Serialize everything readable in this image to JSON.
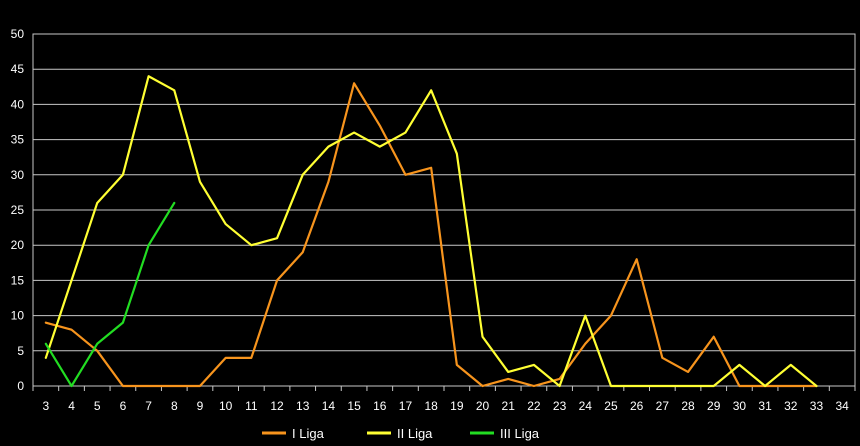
{
  "chart_data": {
    "type": "line",
    "x": [
      3,
      4,
      5,
      6,
      7,
      8,
      9,
      10,
      11,
      12,
      13,
      14,
      15,
      16,
      17,
      18,
      19,
      20,
      21,
      22,
      23,
      24,
      25,
      26,
      27,
      28,
      29,
      30,
      31,
      32,
      33,
      34
    ],
    "ylim": [
      0,
      50
    ],
    "yticks": [
      0,
      5,
      10,
      15,
      20,
      25,
      30,
      35,
      40,
      45,
      50
    ],
    "grid": true,
    "legend_position": "bottom",
    "background": "#000000",
    "series": [
      {
        "name": "I Liga",
        "color": "#f7941d",
        "values": [
          9,
          8,
          5,
          0,
          0,
          0,
          0,
          4,
          4,
          15,
          19,
          29,
          43,
          37,
          30,
          31,
          3,
          0,
          1,
          0,
          1,
          6,
          10,
          18,
          4,
          2,
          7,
          0,
          0,
          0,
          0,
          null
        ]
      },
      {
        "name": "II Liga",
        "color": "#ffff33",
        "values": [
          4,
          15,
          26,
          30,
          44,
          42,
          29,
          23,
          20,
          21,
          30,
          34,
          36,
          34,
          36,
          42,
          33,
          7,
          2,
          3,
          0,
          10,
          0,
          0,
          0,
          0,
          0,
          3,
          0,
          3,
          0,
          null
        ]
      },
      {
        "name": "III Liga",
        "color": "#22dd22",
        "values": [
          6,
          0,
          6,
          9,
          20,
          26,
          null,
          null,
          null,
          null,
          null,
          null,
          null,
          null,
          null,
          null,
          null,
          null,
          null,
          null,
          null,
          null,
          null,
          null,
          null,
          null,
          null,
          null,
          null,
          null,
          null,
          null
        ]
      }
    ]
  }
}
